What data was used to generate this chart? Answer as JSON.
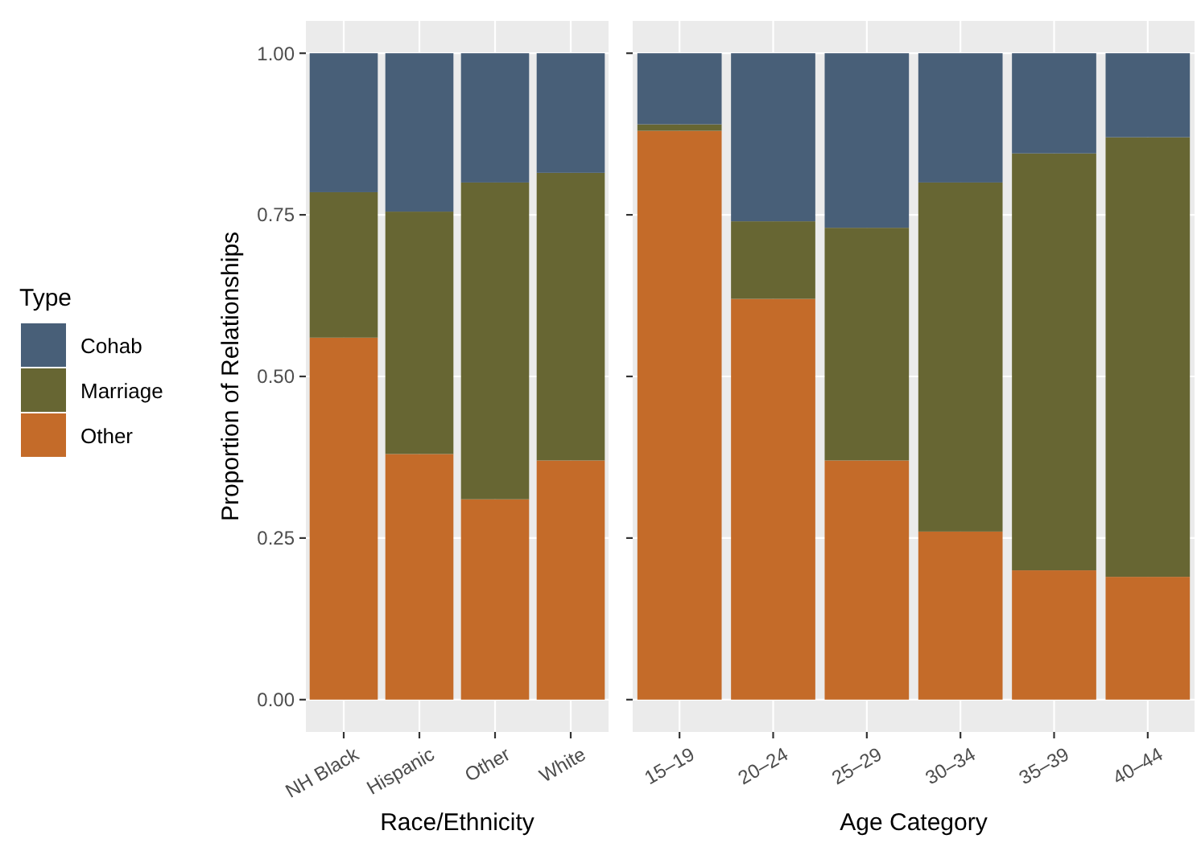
{
  "chart_data": [
    {
      "type": "bar",
      "stacked": true,
      "xlabel": "Race/Ethnicity",
      "ylabel": "Proportion of Relationships",
      "legend_title": "Type",
      "legend": "left",
      "grid": true,
      "categories": [
        "NH Black",
        "Hispanic",
        "Other",
        "White"
      ],
      "ylim": [
        -0.05,
        1.05
      ],
      "yticks": [
        {
          "value": 0,
          "label": "0.00"
        },
        {
          "value": 0.25,
          "label": "0.25"
        },
        {
          "value": 0.5,
          "label": "0.50"
        },
        {
          "value": 0.75,
          "label": "0.75"
        },
        {
          "value": 1,
          "label": "1.00"
        }
      ],
      "series": [
        {
          "name": "Other",
          "color": "#c46b29",
          "values": [
            0.56,
            0.38,
            0.31,
            0.37
          ]
        },
        {
          "name": "Marriage",
          "color": "#676633",
          "values": [
            0.225,
            0.375,
            0.49,
            0.445
          ]
        },
        {
          "name": "Cohab",
          "color": "#485f78",
          "values": [
            0.215,
            0.245,
            0.2,
            0.185
          ]
        }
      ]
    },
    {
      "type": "bar",
      "stacked": true,
      "xlabel": "Age Category",
      "grid": true,
      "tick_labels": "x",
      "categories": [
        "15–19",
        "20–24",
        "25–29",
        "30–34",
        "35–39",
        "40–44"
      ],
      "ylim": [
        -0.05,
        1.05
      ],
      "yticks": [
        {
          "value": 0,
          "label": null
        },
        {
          "value": 0.25,
          "label": null
        },
        {
          "value": 0.5,
          "label": null
        },
        {
          "value": 0.75,
          "label": null
        },
        {
          "value": 1,
          "label": null
        }
      ],
      "series": [
        {
          "color": "#c46b29",
          "values": [
            0.88,
            0.62,
            0.37,
            0.26,
            0.2,
            0.19
          ]
        },
        {
          "color": "#676633",
          "values": [
            0.01,
            0.12,
            0.36,
            0.54,
            0.645,
            0.68
          ]
        },
        {
          "color": "#485f78",
          "values": [
            0.11,
            0.26,
            0.27,
            0.2,
            0.155,
            0.13
          ]
        }
      ]
    }
  ]
}
